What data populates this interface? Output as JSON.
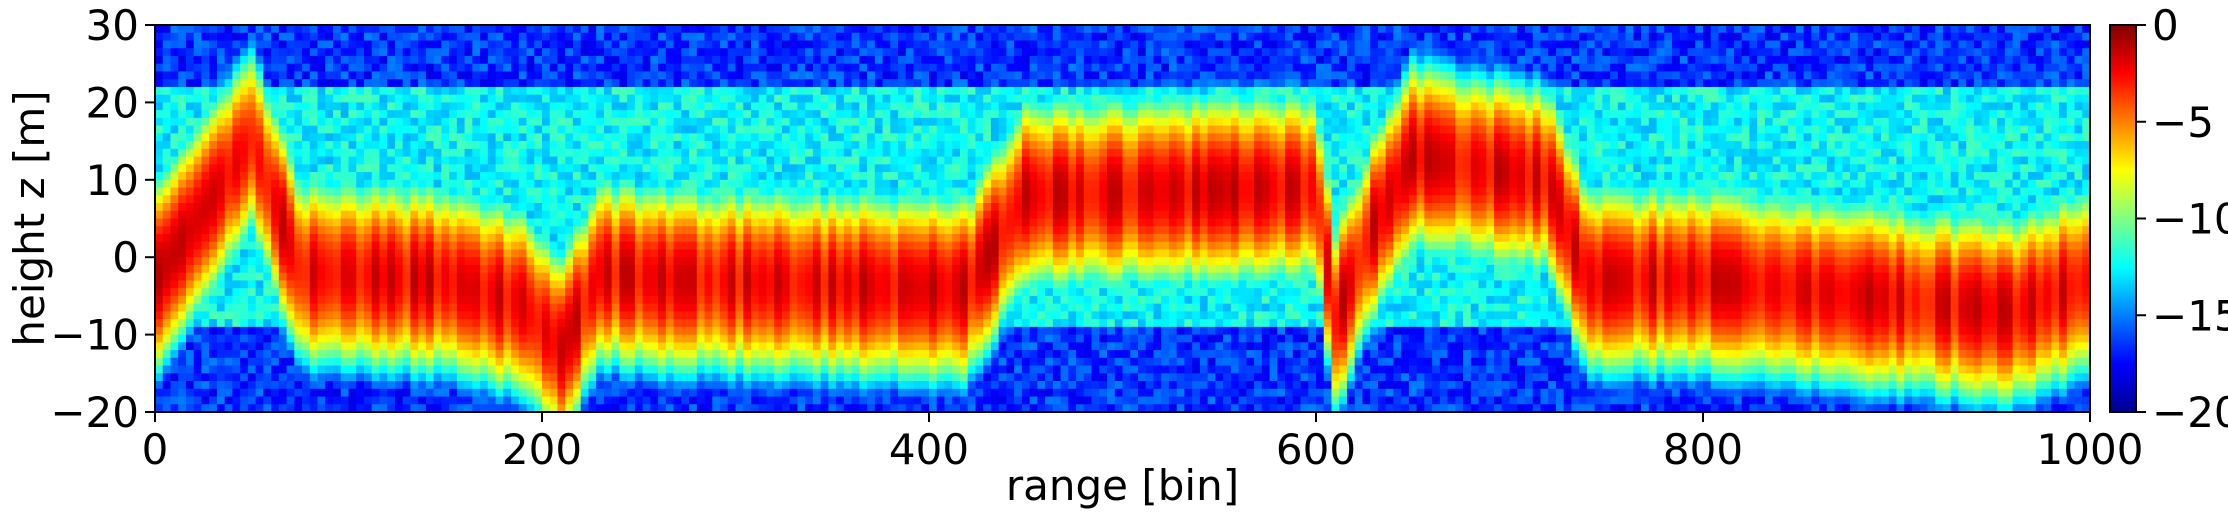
{
  "chart_data": {
    "type": "heatmap",
    "title": "",
    "xlabel": "range [bin]",
    "ylabel": "height z [m]",
    "xlim": [
      0,
      1000
    ],
    "ylim": [
      -20,
      30
    ],
    "x_ticks": [
      {
        "value": 0,
        "label": "0"
      },
      {
        "value": 200,
        "label": "200"
      },
      {
        "value": 400,
        "label": "400"
      },
      {
        "value": 600,
        "label": "600"
      },
      {
        "value": 800,
        "label": "800"
      },
      {
        "value": 1000,
        "label": "1000"
      }
    ],
    "y_ticks": [
      {
        "value": 30,
        "label": "30"
      },
      {
        "value": 20,
        "label": "20"
      },
      {
        "value": 10,
        "label": "10"
      },
      {
        "value": 0,
        "label": "0"
      },
      {
        "value": -10,
        "label": "−10"
      },
      {
        "value": -20,
        "label": "−20"
      }
    ],
    "colormap": "jet",
    "colorbar": {
      "range": [
        -20,
        0
      ],
      "ticks": [
        {
          "value": 0,
          "label": "0"
        },
        {
          "value": -5,
          "label": "−5"
        },
        {
          "value": -10,
          "label": "−10"
        },
        {
          "value": -15,
          "label": "−15"
        },
        {
          "value": -20,
          "label": "−20"
        }
      ]
    },
    "dominant_height_profile": [
      {
        "range": 0,
        "z": -3
      },
      {
        "range": 50,
        "z": 15
      },
      {
        "range": 75,
        "z": -2
      },
      {
        "range": 150,
        "z": -3
      },
      {
        "range": 190,
        "z": -6
      },
      {
        "range": 210,
        "z": -12
      },
      {
        "range": 230,
        "z": -2
      },
      {
        "range": 265,
        "z": -3
      },
      {
        "range": 280,
        "z": -3
      },
      {
        "range": 400,
        "z": -4
      },
      {
        "range": 420,
        "z": -4
      },
      {
        "range": 450,
        "z": 8
      },
      {
        "range": 600,
        "z": 9
      },
      {
        "range": 610,
        "z": -8
      },
      {
        "range": 630,
        "z": 4
      },
      {
        "range": 650,
        "z": 13
      },
      {
        "range": 720,
        "z": 10
      },
      {
        "range": 740,
        "z": -3
      },
      {
        "range": 800,
        "z": -3
      },
      {
        "range": 960,
        "z": -7
      },
      {
        "range": 1000,
        "z": -3
      }
    ]
  }
}
